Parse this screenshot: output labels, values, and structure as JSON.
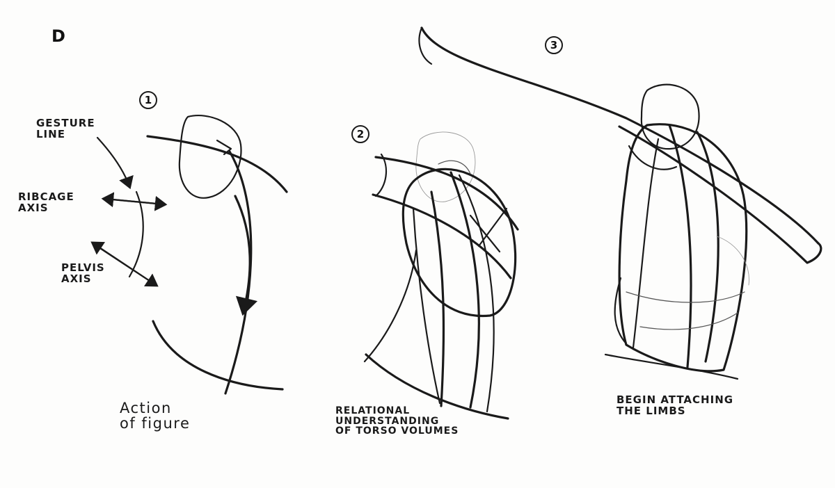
{
  "panel_letter": "D",
  "steps": [
    "1",
    "2",
    "3"
  ],
  "labels": {
    "gesture_line": "GESTURE\nLINE",
    "ribcage_axis": "RIBCAGE\nAXIS",
    "pelvis_axis": "PELVIS\nAXIS",
    "action_of_figure": "Action\n   of figure",
    "relational": "RELATIONAL\nUNDERSTANDING\nOF TORSO VOLUMES",
    "begin_attaching": "BEGIN ATTACHING\nTHE LIMBS"
  },
  "colors": {
    "ink": "#1a1a1a",
    "paper": "#fdfdfc"
  }
}
